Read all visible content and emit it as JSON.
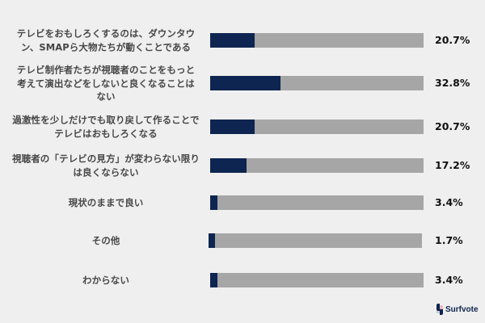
{
  "chart_data": {
    "type": "bar",
    "orientation": "horizontal",
    "title": "",
    "xlabel": "",
    "ylabel": "",
    "xlim": [
      0,
      100
    ],
    "grid": false,
    "legend": null,
    "categories": [
      "テレビをおもしろくするのは、ダウンタウン、SMAPら大物たちが動くことである",
      "テレビ制作者たちが視聴者のことをもっと考えて演出などをしないと良くなることはない",
      "過激性を少しだけでも取り戻して作ることでテレビはおもしろくなる",
      "視聴者の「テレビの見方」が変わらない限りは良くならない",
      "現状のままで良い",
      "その他",
      "わからない"
    ],
    "values": [
      20.7,
      32.8,
      20.7,
      17.2,
      3.4,
      1.7,
      3.4
    ],
    "value_labels": [
      "20.7%",
      "32.8%",
      "20.7%",
      "17.2%",
      "3.4%",
      "1.7%",
      "3.4%"
    ],
    "colors": {
      "fill": "#0d2550",
      "track": "#a6a6a6",
      "background": "#efefef"
    }
  },
  "rows": [
    {
      "label": "テレビをおもしろくするのは、ダウンタウ\nン、SMAPら大物たちが動くことである",
      "value": "20.7%"
    },
    {
      "label": "テレビ制作者たちが視聴者のことをもっと\n考えて演出などをしないと良くなることは\nない",
      "value": "32.8%"
    },
    {
      "label": "過激性を少しだけでも取り戻して作ることで\nテレビはおもしろくなる",
      "value": "20.7%"
    },
    {
      "label": "視聴者の「テレビの見方」が変わらない限り\nは良くならない",
      "value": "17.2%"
    },
    {
      "label": "現状のままで良い",
      "value": "3.4%"
    },
    {
      "label": "その他",
      "value": "1.7%"
    },
    {
      "label": "わからない",
      "value": "3.4%"
    }
  ],
  "branding": {
    "logo_text": "Surfvote"
  }
}
